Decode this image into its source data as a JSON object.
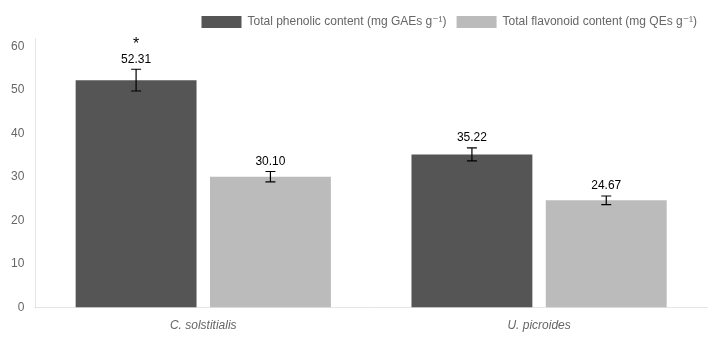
{
  "chart_data": {
    "type": "bar",
    "categories": [
      "C. solstitialis",
      "U. picroides"
    ],
    "series": [
      {
        "name": "Total phenolic content (mg GAEs g⁻¹)",
        "color": "#555555",
        "values": [
          52.31,
          35.22
        ],
        "errors": [
          2.5,
          1.5
        ]
      },
      {
        "name": "Total flavonoid content (mg QEs g⁻¹)",
        "color": "#bbbbbb",
        "values": [
          30.1,
          24.67
        ],
        "value_labels": [
          "30.10",
          "24.67"
        ],
        "errors": [
          1.2,
          1.0
        ]
      }
    ],
    "ylim": [
      0,
      62
    ],
    "yticks": [
      0,
      10,
      20,
      30,
      40,
      50,
      60
    ],
    "grid": false,
    "legend": "upper right",
    "data_labels": true,
    "annotations": [
      {
        "text": "*",
        "category": "C. solstitialis",
        "series": "Total phenolic content (mg GAEs g⁻¹)"
      }
    ]
  }
}
